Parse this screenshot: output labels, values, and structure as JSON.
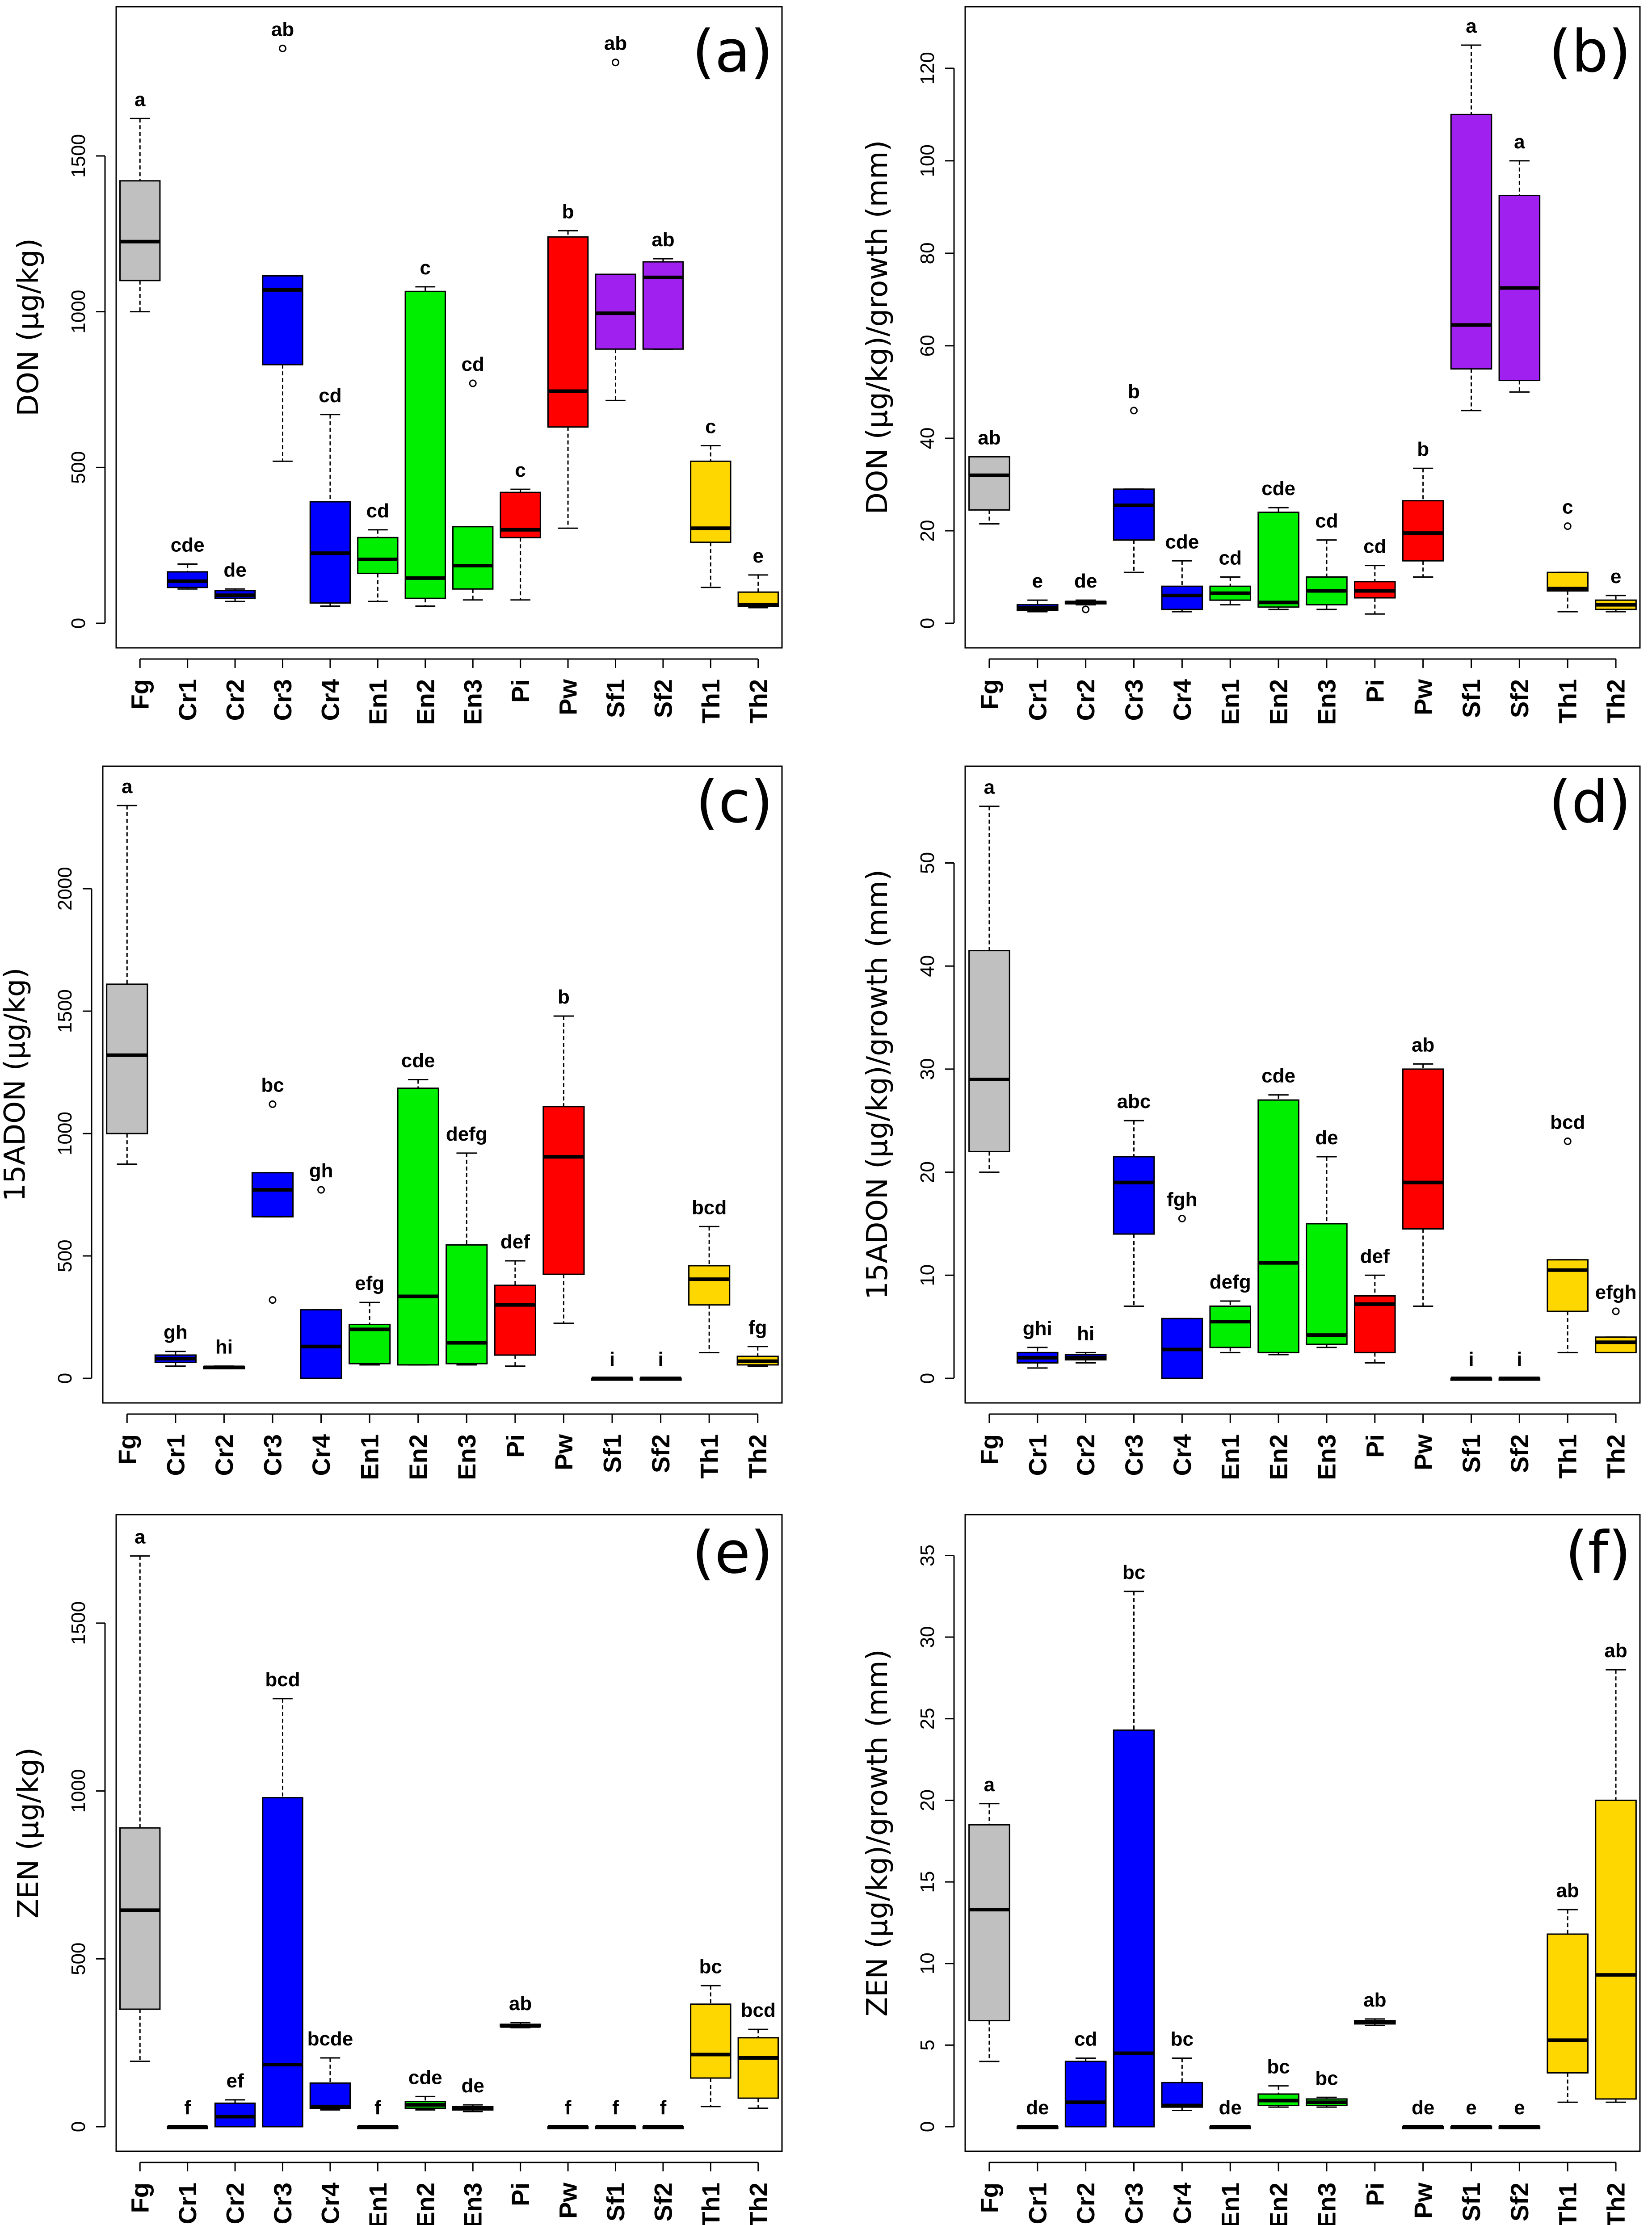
{
  "categories": [
    "Fg",
    "Cr1",
    "Cr2",
    "Cr3",
    "Cr4",
    "En1",
    "En2",
    "En3",
    "Pi",
    "Pw",
    "Sf1",
    "Sf2",
    "Th1",
    "Th2"
  ],
  "colors": {
    "Fg": "#c0c0c0",
    "Cr1": "#0000ff",
    "Cr2": "#0000ff",
    "Cr3": "#0000ff",
    "Cr4": "#0000ff",
    "En1": "#00ee00",
    "En2": "#00ee00",
    "En3": "#00ee00",
    "Pi": "#ff0000",
    "Pw": "#ff0000",
    "Sf1": "#a020f0",
    "Sf2": "#a020f0",
    "Th1": "#ffd700",
    "Th2": "#ffd700"
  },
  "chart_data": [
    {
      "type": "box",
      "panel": "(a)",
      "ylabel": "DON (µg/kg)",
      "ylim": [
        0,
        1900
      ],
      "yticks": [
        0,
        500,
        1000,
        1500
      ],
      "boxes": [
        {
          "cat": "Fg",
          "min": 1000,
          "q1": 1100,
          "med": 1225,
          "q3": 1420,
          "max": 1620,
          "sig": "a",
          "out": []
        },
        {
          "cat": "Cr1",
          "min": 110,
          "q1": 115,
          "med": 135,
          "q3": 165,
          "max": 190,
          "sig": "cde",
          "out": []
        },
        {
          "cat": "Cr2",
          "min": 70,
          "q1": 80,
          "med": 90,
          "q3": 105,
          "max": 110,
          "sig": "de",
          "out": []
        },
        {
          "cat": "Cr3",
          "min": 520,
          "q1": 830,
          "med": 1070,
          "q3": 1115,
          "max": 1115,
          "sig": "ab",
          "out": [
            1845
          ]
        },
        {
          "cat": "Cr4",
          "min": 55,
          "q1": 65,
          "med": 225,
          "q3": 390,
          "max": 670,
          "sig": "cd",
          "out": []
        },
        {
          "cat": "En1",
          "min": 70,
          "q1": 160,
          "med": 205,
          "q3": 275,
          "max": 300,
          "sig": "cd",
          "out": []
        },
        {
          "cat": "En2",
          "min": 55,
          "q1": 80,
          "med": 145,
          "q3": 1065,
          "max": 1080,
          "sig": "c",
          "out": []
        },
        {
          "cat": "En3",
          "min": 75,
          "q1": 110,
          "med": 185,
          "q3": 310,
          "max": 310,
          "sig": "cd",
          "out": [
            770
          ]
        },
        {
          "cat": "Pi",
          "min": 75,
          "q1": 275,
          "med": 300,
          "q3": 420,
          "max": 430,
          "sig": "c",
          "out": []
        },
        {
          "cat": "Pw",
          "min": 305,
          "q1": 630,
          "med": 745,
          "q3": 1240,
          "max": 1260,
          "sig": "b",
          "out": []
        },
        {
          "cat": "Sf1",
          "min": 715,
          "q1": 880,
          "med": 995,
          "q3": 1120,
          "max": 1120,
          "sig": "ab",
          "out": [
            1800
          ]
        },
        {
          "cat": "Sf2",
          "min": 880,
          "q1": 880,
          "med": 1110,
          "q3": 1160,
          "max": 1170,
          "sig": "ab",
          "out": []
        },
        {
          "cat": "Th1",
          "min": 115,
          "q1": 260,
          "med": 305,
          "q3": 520,
          "max": 570,
          "sig": "c",
          "out": []
        },
        {
          "cat": "Th2",
          "min": 50,
          "q1": 55,
          "med": 60,
          "q3": 100,
          "max": 155,
          "sig": "e",
          "out": []
        }
      ]
    },
    {
      "type": "box",
      "panel": "(b)",
      "ylabel": "DON (µg/kg)/growth (mm)",
      "ylim": [
        0,
        128
      ],
      "yticks": [
        0,
        20,
        40,
        60,
        80,
        100,
        120
      ],
      "boxes": [
        {
          "cat": "Fg",
          "min": 21.5,
          "q1": 24.5,
          "med": 32,
          "q3": 36,
          "max": 36,
          "sig": "ab",
          "out": []
        },
        {
          "cat": "Cr1",
          "min": 2.5,
          "q1": 2.8,
          "med": 3.3,
          "q3": 4,
          "max": 5,
          "sig": "e",
          "out": []
        },
        {
          "cat": "Cr2",
          "min": 4,
          "q1": 4.2,
          "med": 4.5,
          "q3": 4.7,
          "max": 5,
          "sig": "de",
          "out": [
            3
          ]
        },
        {
          "cat": "Cr3",
          "min": 11,
          "q1": 18,
          "med": 25.5,
          "q3": 29,
          "max": 29,
          "sig": "b",
          "out": [
            46
          ]
        },
        {
          "cat": "Cr4",
          "min": 2.5,
          "q1": 3,
          "med": 6,
          "q3": 8,
          "max": 13.5,
          "sig": "cde",
          "out": []
        },
        {
          "cat": "En1",
          "min": 4,
          "q1": 5,
          "med": 6.5,
          "q3": 8,
          "max": 10,
          "sig": "cd",
          "out": []
        },
        {
          "cat": "En2",
          "min": 3,
          "q1": 3.5,
          "med": 4.5,
          "q3": 24,
          "max": 25,
          "sig": "cde",
          "out": []
        },
        {
          "cat": "En3",
          "min": 3,
          "q1": 4,
          "med": 7,
          "q3": 10,
          "max": 18,
          "sig": "cd",
          "out": []
        },
        {
          "cat": "Pi",
          "min": 2,
          "q1": 5.5,
          "med": 7,
          "q3": 9,
          "max": 12.5,
          "sig": "cd",
          "out": []
        },
        {
          "cat": "Pw",
          "min": 10,
          "q1": 13.5,
          "med": 19.5,
          "q3": 26.5,
          "max": 33.5,
          "sig": "b",
          "out": []
        },
        {
          "cat": "Sf1",
          "min": 46,
          "q1": 55,
          "med": 64.5,
          "q3": 110,
          "max": 125,
          "sig": "a",
          "out": []
        },
        {
          "cat": "Sf2",
          "min": 50,
          "q1": 52.5,
          "med": 72.5,
          "q3": 92.5,
          "max": 100,
          "sig": "a",
          "out": []
        },
        {
          "cat": "Th1",
          "min": 2.5,
          "q1": 7,
          "med": 7.5,
          "q3": 11,
          "max": 11,
          "sig": "c",
          "out": [
            21
          ]
        },
        {
          "cat": "Th2",
          "min": 2.5,
          "q1": 3,
          "med": 4,
          "q3": 5,
          "max": 6,
          "sig": "e",
          "out": []
        }
      ]
    },
    {
      "type": "box",
      "panel": "(c)",
      "ylabel": "15ADON (µg/kg)",
      "ylim": [
        0,
        2400
      ],
      "yticks": [
        0,
        500,
        1000,
        1500,
        2000
      ],
      "boxes": [
        {
          "cat": "Fg",
          "min": 875,
          "q1": 1000,
          "med": 1320,
          "q3": 1610,
          "max": 2340,
          "sig": "a",
          "out": []
        },
        {
          "cat": "Cr1",
          "min": 50,
          "q1": 65,
          "med": 80,
          "q3": 95,
          "max": 110,
          "sig": "gh",
          "out": []
        },
        {
          "cat": "Cr2",
          "min": 40,
          "q1": 42,
          "med": 45,
          "q3": 47,
          "max": 50,
          "sig": "hi",
          "out": []
        },
        {
          "cat": "Cr3",
          "min": 660,
          "q1": 660,
          "med": 770,
          "q3": 840,
          "max": 840,
          "sig": "bc",
          "out": [
            1120,
            320
          ]
        },
        {
          "cat": "Cr4",
          "min": 0,
          "q1": 0,
          "med": 130,
          "q3": 280,
          "max": 280,
          "sig": "gh",
          "out": [
            770
          ]
        },
        {
          "cat": "En1",
          "min": 55,
          "q1": 60,
          "med": 200,
          "q3": 220,
          "max": 310,
          "sig": "efg",
          "out": []
        },
        {
          "cat": "En2",
          "min": 55,
          "q1": 55,
          "med": 335,
          "q3": 1185,
          "max": 1220,
          "sig": "cde",
          "out": []
        },
        {
          "cat": "En3",
          "min": 55,
          "q1": 60,
          "med": 145,
          "q3": 545,
          "max": 920,
          "sig": "defg",
          "out": []
        },
        {
          "cat": "Pi",
          "min": 50,
          "q1": 95,
          "med": 300,
          "q3": 380,
          "max": 480,
          "sig": "def",
          "out": []
        },
        {
          "cat": "Pw",
          "min": 225,
          "q1": 425,
          "med": 905,
          "q3": 1110,
          "max": 1480,
          "sig": "b",
          "out": []
        },
        {
          "cat": "Sf1",
          "min": 0,
          "q1": 0,
          "med": 0,
          "q3": 0,
          "max": 0,
          "sig": "i",
          "out": []
        },
        {
          "cat": "Sf2",
          "min": 0,
          "q1": 0,
          "med": 0,
          "q3": 0,
          "max": 0,
          "sig": "i",
          "out": []
        },
        {
          "cat": "Th1",
          "min": 105,
          "q1": 300,
          "med": 405,
          "q3": 460,
          "max": 620,
          "sig": "bcd",
          "out": []
        },
        {
          "cat": "Th2",
          "min": 50,
          "q1": 55,
          "med": 70,
          "q3": 90,
          "max": 130,
          "sig": "fg",
          "out": []
        }
      ]
    },
    {
      "type": "box",
      "panel": "(d)",
      "ylabel": "15ADON (µg/kg)/growth (mm)",
      "ylim": [
        0,
        57
      ],
      "yticks": [
        0,
        10,
        20,
        30,
        40,
        50
      ],
      "boxes": [
        {
          "cat": "Fg",
          "min": 20,
          "q1": 22,
          "med": 29,
          "q3": 41.5,
          "max": 55.5,
          "sig": "a",
          "out": []
        },
        {
          "cat": "Cr1",
          "min": 1,
          "q1": 1.5,
          "med": 2,
          "q3": 2.5,
          "max": 3,
          "sig": "ghi",
          "out": []
        },
        {
          "cat": "Cr2",
          "min": 1.5,
          "q1": 1.8,
          "med": 2,
          "q3": 2.3,
          "max": 2.5,
          "sig": "hi",
          "out": []
        },
        {
          "cat": "Cr3",
          "min": 7,
          "q1": 14,
          "med": 19,
          "q3": 21.5,
          "max": 25,
          "sig": "abc",
          "out": []
        },
        {
          "cat": "Cr4",
          "min": 0,
          "q1": 0,
          "med": 2.8,
          "q3": 5.8,
          "max": 5.8,
          "sig": "fgh",
          "out": [
            15.5
          ]
        },
        {
          "cat": "En1",
          "min": 2.5,
          "q1": 3,
          "med": 5.5,
          "q3": 7,
          "max": 7.5,
          "sig": "defg",
          "out": []
        },
        {
          "cat": "En2",
          "min": 2.3,
          "q1": 2.5,
          "med": 11.2,
          "q3": 27,
          "max": 27.5,
          "sig": "cde",
          "out": []
        },
        {
          "cat": "En3",
          "min": 3,
          "q1": 3.3,
          "med": 4.2,
          "q3": 15,
          "max": 21.5,
          "sig": "de",
          "out": []
        },
        {
          "cat": "Pi",
          "min": 1.5,
          "q1": 2.5,
          "med": 7.2,
          "q3": 8,
          "max": 10,
          "sig": "def",
          "out": []
        },
        {
          "cat": "Pw",
          "min": 7,
          "q1": 14.5,
          "med": 19,
          "q3": 30,
          "max": 30.5,
          "sig": "ab",
          "out": []
        },
        {
          "cat": "Sf1",
          "min": 0,
          "q1": 0,
          "med": 0,
          "q3": 0,
          "max": 0,
          "sig": "i",
          "out": []
        },
        {
          "cat": "Sf2",
          "min": 0,
          "q1": 0,
          "med": 0,
          "q3": 0,
          "max": 0,
          "sig": "i",
          "out": []
        },
        {
          "cat": "Th1",
          "min": 2.5,
          "q1": 6.5,
          "med": 10.5,
          "q3": 11.5,
          "max": 11.5,
          "sig": "bcd",
          "out": [
            23
          ]
        },
        {
          "cat": "Th2",
          "min": 2.5,
          "q1": 2.5,
          "med": 3.5,
          "q3": 4,
          "max": 4,
          "sig": "efgh",
          "out": [
            6.5
          ]
        }
      ]
    },
    {
      "type": "box",
      "panel": "(e)",
      "ylabel": "ZEN (µg/kg)",
      "ylim": [
        0,
        1750
      ],
      "yticks": [
        0,
        500,
        1000,
        1500
      ],
      "boxes": [
        {
          "cat": "Fg",
          "min": 195,
          "q1": 350,
          "med": 645,
          "q3": 890,
          "max": 1700,
          "sig": "a",
          "out": []
        },
        {
          "cat": "Cr1",
          "min": 0,
          "q1": 0,
          "med": 0,
          "q3": 0,
          "max": 0,
          "sig": "f",
          "out": []
        },
        {
          "cat": "Cr2",
          "min": 0,
          "q1": 0,
          "med": 30,
          "q3": 70,
          "max": 80,
          "sig": "ef",
          "out": []
        },
        {
          "cat": "Cr3",
          "min": 0,
          "q1": 0,
          "med": 185,
          "q3": 980,
          "max": 1275,
          "sig": "bcd",
          "out": []
        },
        {
          "cat": "Cr4",
          "min": 50,
          "q1": 55,
          "med": 60,
          "q3": 130,
          "max": 205,
          "sig": "bcde",
          "out": []
        },
        {
          "cat": "En1",
          "min": 0,
          "q1": 0,
          "med": 0,
          "q3": 0,
          "max": 0,
          "sig": "f",
          "out": []
        },
        {
          "cat": "En2",
          "min": 50,
          "q1": 55,
          "med": 65,
          "q3": 75,
          "max": 90,
          "sig": "cde",
          "out": []
        },
        {
          "cat": "En3",
          "min": 45,
          "q1": 50,
          "med": 55,
          "q3": 60,
          "max": 65,
          "sig": "de",
          "out": []
        },
        {
          "cat": "Pi",
          "min": 295,
          "q1": 298,
          "med": 300,
          "q3": 305,
          "max": 310,
          "sig": "ab",
          "out": []
        },
        {
          "cat": "Pw",
          "min": 0,
          "q1": 0,
          "med": 0,
          "q3": 0,
          "max": 0,
          "sig": "f",
          "out": []
        },
        {
          "cat": "Sf1",
          "min": 0,
          "q1": 0,
          "med": 0,
          "q3": 0,
          "max": 0,
          "sig": "f",
          "out": []
        },
        {
          "cat": "Sf2",
          "min": 0,
          "q1": 0,
          "med": 0,
          "q3": 0,
          "max": 0,
          "sig": "f",
          "out": []
        },
        {
          "cat": "Th1",
          "min": 60,
          "q1": 145,
          "med": 215,
          "q3": 365,
          "max": 420,
          "sig": "bc",
          "out": []
        },
        {
          "cat": "Th2",
          "min": 55,
          "q1": 85,
          "med": 205,
          "q3": 265,
          "max": 290,
          "sig": "bcd",
          "out": []
        }
      ]
    },
    {
      "type": "box",
      "panel": "(f)",
      "ylabel": "ZEN (µg/kg)/growth (mm)",
      "ylim": [
        0,
        36
      ],
      "yticks": [
        0,
        5,
        10,
        15,
        20,
        25,
        30,
        35
      ],
      "boxes": [
        {
          "cat": "Fg",
          "min": 4,
          "q1": 6.5,
          "med": 13.3,
          "q3": 18.5,
          "max": 19.8,
          "sig": "a",
          "out": []
        },
        {
          "cat": "Cr1",
          "min": 0,
          "q1": 0,
          "med": 0,
          "q3": 0,
          "max": 0,
          "sig": "de",
          "out": []
        },
        {
          "cat": "Cr2",
          "min": 0,
          "q1": 0,
          "med": 1.5,
          "q3": 4,
          "max": 4.2,
          "sig": "cd",
          "out": []
        },
        {
          "cat": "Cr3",
          "min": 0,
          "q1": 0,
          "med": 4.5,
          "q3": 24.3,
          "max": 32.8,
          "sig": "bc",
          "out": []
        },
        {
          "cat": "Cr4",
          "min": 1,
          "q1": 1.2,
          "med": 1.3,
          "q3": 2.7,
          "max": 4.2,
          "sig": "bc",
          "out": []
        },
        {
          "cat": "En1",
          "min": 0,
          "q1": 0,
          "med": 0,
          "q3": 0,
          "max": 0,
          "sig": "de",
          "out": []
        },
        {
          "cat": "En2",
          "min": 1.2,
          "q1": 1.3,
          "med": 1.6,
          "q3": 2,
          "max": 2.5,
          "sig": "bc",
          "out": []
        },
        {
          "cat": "En3",
          "min": 1.2,
          "q1": 1.3,
          "med": 1.5,
          "q3": 1.7,
          "max": 1.8,
          "sig": "bc",
          "out": []
        },
        {
          "cat": "Pi",
          "min": 6.2,
          "q1": 6.3,
          "med": 6.4,
          "q3": 6.5,
          "max": 6.6,
          "sig": "ab",
          "out": []
        },
        {
          "cat": "Pw",
          "min": 0,
          "q1": 0,
          "med": 0,
          "q3": 0,
          "max": 0,
          "sig": "de",
          "out": []
        },
        {
          "cat": "Sf1",
          "min": 0,
          "q1": 0,
          "med": 0,
          "q3": 0,
          "max": 0,
          "sig": "e",
          "out": []
        },
        {
          "cat": "Sf2",
          "min": 0,
          "q1": 0,
          "med": 0,
          "q3": 0,
          "max": 0,
          "sig": "e",
          "out": []
        },
        {
          "cat": "Th1",
          "min": 1.5,
          "q1": 3.3,
          "med": 5.3,
          "q3": 11.8,
          "max": 13.3,
          "sig": "ab",
          "out": []
        },
        {
          "cat": "Th2",
          "min": 1.5,
          "q1": 1.7,
          "med": 9.3,
          "q3": 20,
          "max": 28,
          "sig": "ab",
          "out": []
        }
      ]
    }
  ]
}
